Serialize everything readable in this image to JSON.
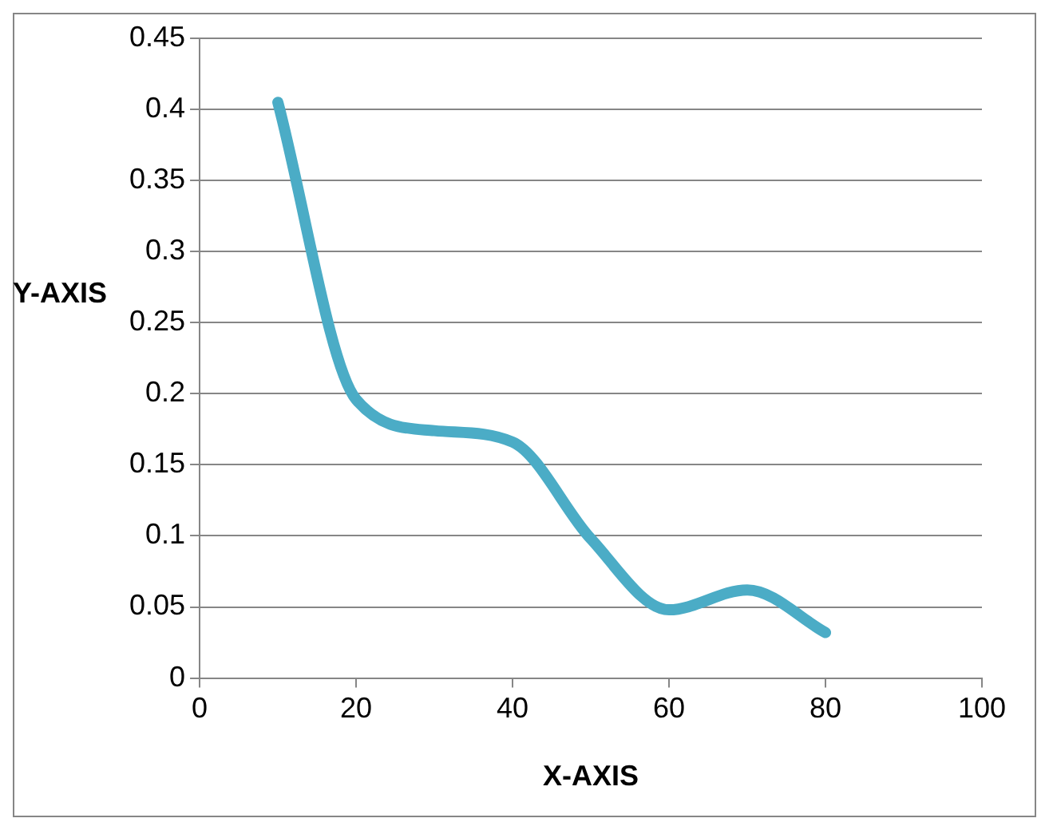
{
  "chart_data": {
    "type": "line",
    "xlabel": "X-AXIS",
    "ylabel": "Y-AXIS",
    "x": [
      10,
      20,
      30,
      40,
      50,
      60,
      70,
      80
    ],
    "series": [
      {
        "color": "#4bacc6",
        "values": [
          0.405,
          0.196,
          0.174,
          0.166,
          0.098,
          0.048,
          0.062,
          0.032
        ]
      }
    ],
    "xlim": [
      0,
      100
    ],
    "xticks": [
      0,
      20,
      40,
      60,
      80,
      100
    ],
    "ylim": [
      0,
      0.45
    ],
    "yticks": [
      0,
      0.05,
      0.1,
      0.15,
      0.2,
      0.25,
      0.3,
      0.35,
      0.4,
      0.45
    ],
    "grid": "y",
    "legend": false,
    "marker": "none",
    "line_style": "solid"
  }
}
